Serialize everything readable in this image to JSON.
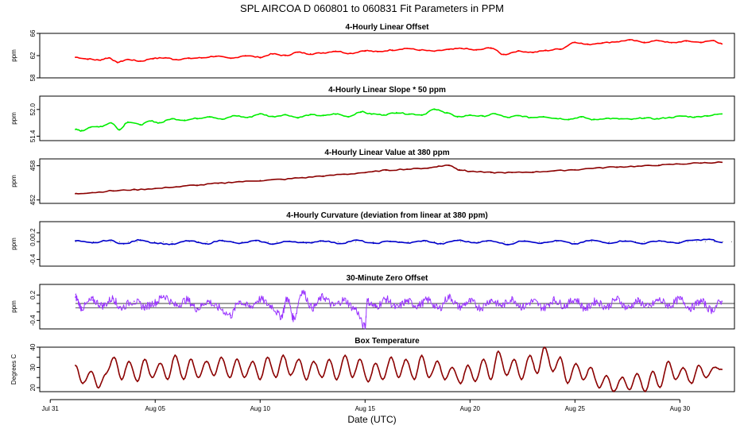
{
  "figure": {
    "title": "SPL   AIRCOA D   060801 to 060831   Fit Parameters in PPM",
    "xlabel": "Date (UTC)"
  },
  "chart_data": [
    {
      "type": "line",
      "title": "4-Hourly Linear Offset",
      "ylabel": "ppm",
      "ylim": [
        58,
        66
      ],
      "yticks": [
        58,
        62,
        66
      ],
      "ytick_labels": [
        "58",
        "62",
        "66"
      ],
      "color": "#ff0000",
      "x_range": [
        1.2,
        32.0
      ],
      "x": [
        1.2,
        1.8,
        2.3,
        2.8,
        3.2,
        3.7,
        4.3,
        4.9,
        5.5,
        6.0,
        6.6,
        7.2,
        7.9,
        8.6,
        9.3,
        10.0,
        10.6,
        11.2,
        11.8,
        12.4,
        13.0,
        13.6,
        14.3,
        15.0,
        15.6,
        16.3,
        17.0,
        17.6,
        18.3,
        19.0,
        19.6,
        20.3,
        21.0,
        21.6,
        22.3,
        23.0,
        23.6,
        24.3,
        25.0,
        25.6,
        26.3,
        27.0,
        27.6,
        28.3,
        29.0,
        29.6,
        30.3,
        31.0,
        31.6,
        32.0
      ],
      "y": [
        61.7,
        61.4,
        61.2,
        61.6,
        60.8,
        61.3,
        61.0,
        61.5,
        61.6,
        61.3,
        61.5,
        61.6,
        61.9,
        61.5,
        62.0,
        61.7,
        62.3,
        62.0,
        62.6,
        62.3,
        62.5,
        62.8,
        62.4,
        62.9,
        62.7,
        63.0,
        63.3,
        63.0,
        62.8,
        63.1,
        63.3,
        63.0,
        63.4,
        62.2,
        62.8,
        62.6,
        62.9,
        63.2,
        64.4,
        64.0,
        64.3,
        64.5,
        64.8,
        64.4,
        64.7,
        64.3,
        64.6,
        64.4,
        64.7,
        64.1
      ]
    },
    {
      "type": "line",
      "title": "4-Hourly Linear Slope * 50 ppm",
      "ylabel": "ppm",
      "ylim": [
        51.3,
        52.3
      ],
      "yticks": [
        51.4,
        52.0
      ],
      "ytick_labels": [
        "51.4",
        "52.0"
      ],
      "color": "#00ee00",
      "x_range": [
        1.2,
        32.0
      ],
      "x": [
        1.2,
        1.5,
        1.9,
        2.4,
        2.9,
        3.3,
        3.7,
        4.3,
        4.8,
        5.2,
        5.8,
        6.4,
        7.0,
        7.6,
        8.2,
        8.8,
        9.4,
        10.0,
        10.6,
        11.2,
        11.8,
        12.4,
        13.0,
        13.6,
        14.2,
        14.8,
        15.3,
        15.9,
        16.5,
        17.1,
        17.7,
        18.3,
        18.9,
        19.4,
        20.0,
        20.6,
        21.2,
        21.8,
        22.3,
        22.9,
        23.5,
        24.1,
        24.7,
        25.3,
        25.9,
        26.5,
        27.1,
        27.7,
        28.3,
        28.9,
        29.5,
        30.1,
        30.7,
        31.3,
        32.0
      ],
      "y": [
        51.55,
        51.52,
        51.6,
        51.62,
        51.7,
        51.55,
        51.72,
        51.66,
        51.74,
        51.7,
        51.79,
        51.76,
        51.8,
        51.84,
        51.78,
        51.86,
        51.82,
        51.9,
        51.84,
        51.88,
        51.82,
        51.88,
        51.86,
        51.9,
        51.84,
        51.95,
        51.9,
        51.88,
        51.93,
        51.9,
        51.88,
        52.0,
        51.93,
        51.83,
        51.87,
        51.85,
        51.9,
        51.82,
        51.86,
        51.82,
        51.84,
        51.8,
        51.78,
        51.83,
        51.77,
        51.8,
        51.79,
        51.78,
        51.81,
        51.79,
        51.82,
        51.85,
        51.83,
        51.86,
        51.9
      ]
    },
    {
      "type": "line",
      "title": "4-Hourly Linear Value at 380 ppm",
      "ylabel": "ppm",
      "ylim": [
        451.4,
        459.2
      ],
      "yticks": [
        452,
        458
      ],
      "ytick_labels": [
        "452",
        "458"
      ],
      "color": "#8b0000",
      "x_range": [
        1.2,
        32.0
      ],
      "x": [
        1.2,
        2.0,
        3.0,
        4.0,
        5.0,
        6.0,
        7.0,
        8.0,
        9.0,
        10.0,
        11.0,
        12.0,
        13.0,
        14.0,
        15.0,
        16.0,
        17.0,
        18.0,
        18.5,
        19.0,
        19.5,
        20.0,
        21.0,
        22.0,
        23.0,
        24.0,
        25.0,
        26.0,
        27.0,
        28.0,
        29.0,
        30.0,
        31.0,
        32.0
      ],
      "y": [
        453.1,
        453.3,
        453.6,
        453.8,
        454.0,
        454.3,
        454.6,
        454.9,
        455.2,
        455.4,
        455.6,
        455.9,
        456.2,
        456.5,
        456.8,
        457.2,
        457.4,
        457.6,
        457.9,
        458.1,
        457.3,
        457.0,
        456.8,
        456.8,
        456.9,
        457.1,
        457.3,
        457.6,
        457.8,
        457.9,
        458.1,
        458.3,
        458.5,
        458.6
      ]
    },
    {
      "type": "line",
      "title": "4-Hourly Curvature (deviation from linear at 380 ppm)",
      "ylabel": "ppm",
      "ylim": [
        -0.55,
        0.45
      ],
      "yticks": [
        -0.4,
        0.0,
        0.2
      ],
      "ytick_labels": [
        "-0.4",
        "0.0",
        "0.2"
      ],
      "color": "#0000cc",
      "reference_lines": [
        0.0
      ],
      "x_range": [
        1.2,
        32.0
      ],
      "x": [
        1.2,
        2.0,
        2.8,
        3.5,
        4.3,
        5.0,
        5.8,
        6.6,
        7.4,
        8.2,
        9.0,
        9.8,
        10.6,
        11.4,
        12.2,
        13.0,
        13.8,
        14.6,
        15.4,
        16.2,
        17.0,
        17.8,
        18.6,
        19.4,
        20.2,
        21.0,
        21.8,
        22.6,
        23.4,
        24.2,
        25.0,
        25.8,
        26.6,
        27.4,
        28.2,
        29.0,
        29.8,
        30.6,
        31.4,
        32.0
      ],
      "y": [
        0.02,
        -0.03,
        0.03,
        -0.05,
        0.04,
        -0.03,
        -0.06,
        0.02,
        -0.05,
        0.03,
        -0.04,
        0.02,
        -0.05,
        0.01,
        -0.03,
        0.02,
        -0.04,
        0.03,
        -0.04,
        0.01,
        -0.03,
        0.02,
        -0.05,
        0.03,
        -0.02,
        0.02,
        -0.06,
        0.02,
        -0.03,
        0.02,
        -0.05,
        0.03,
        -0.03,
        0.02,
        -0.04,
        0.02,
        -0.03,
        0.03,
        0.05,
        -0.02
      ]
    },
    {
      "type": "line",
      "title": "30-Minute Zero Offset",
      "ylabel": "ppm",
      "ylim": [
        -0.6,
        0.45
      ],
      "yticks": [
        -0.4,
        -0.2,
        0.0,
        0.2
      ],
      "ytick_labels": [
        "-0.4",
        "",
        "",
        "0.2"
      ],
      "color": "#9933ff",
      "reference_lines": [
        0.0,
        -0.1
      ],
      "x_range": [
        1.2,
        32.0
      ],
      "noisy": true,
      "x": [
        1.2,
        1.5,
        2.0,
        2.5,
        3.0,
        3.3,
        4.0,
        4.5,
        5.0,
        5.4,
        6.0,
        6.5,
        7.0,
        7.5,
        8.0,
        8.6,
        9.0,
        9.5,
        10.0,
        10.5,
        11.0,
        11.3,
        11.6,
        12.0,
        12.5,
        13.0,
        13.5,
        14.0,
        14.5,
        15.0,
        15.1,
        15.5,
        16.0,
        16.5,
        17.0,
        17.5,
        18.0,
        18.5,
        19.0,
        19.5,
        20.0,
        20.5,
        21.0,
        21.5,
        22.0,
        22.5,
        23.0,
        23.5,
        24.0,
        24.5,
        25.0,
        25.5,
        26.0,
        26.5,
        27.0,
        27.5,
        28.0,
        28.5,
        29.0,
        29.5,
        30.0,
        30.5,
        31.0,
        31.5,
        32.0
      ],
      "y": [
        0.15,
        -0.1,
        0.08,
        -0.05,
        0.12,
        -0.1,
        0.05,
        -0.08,
        0.02,
        0.18,
        -0.05,
        0.08,
        -0.12,
        0.05,
        -0.1,
        -0.28,
        0.05,
        -0.08,
        0.1,
        -0.05,
        -0.3,
        0.12,
        -0.35,
        0.28,
        -0.1,
        0.15,
        -0.05,
        0.08,
        -0.12,
        -0.55,
        0.05,
        -0.08,
        0.1,
        -0.1,
        0.05,
        -0.05,
        0.08,
        -0.12,
        0.15,
        -0.08,
        0.05,
        -0.1,
        0.08,
        -0.05,
        0.1,
        -0.08,
        0.05,
        -0.1,
        0.08,
        -0.05,
        0.1,
        -0.12,
        0.05,
        -0.08,
        0.1,
        -0.1,
        0.05,
        -0.08,
        0.08,
        -0.05,
        0.1,
        -0.1,
        0.05,
        -0.15,
        0.05
      ]
    },
    {
      "type": "line",
      "title": "Box Temperature",
      "ylabel": "Degrees C",
      "ylim": [
        18,
        40
      ],
      "yticks": [
        20,
        25,
        30,
        35,
        40
      ],
      "ytick_labels": [
        "20",
        "",
        "30",
        "",
        "40"
      ],
      "color": "#8b0000",
      "x_range": [
        1.2,
        32.0
      ],
      "x": [
        1.2,
        1.55,
        1.95,
        2.3,
        2.65,
        3.05,
        3.4,
        3.75,
        4.15,
        4.5,
        4.85,
        5.25,
        5.6,
        5.95,
        6.35,
        6.7,
        7.05,
        7.45,
        7.8,
        8.15,
        8.55,
        8.9,
        9.25,
        9.65,
        10.0,
        10.35,
        10.75,
        11.1,
        11.45,
        11.85,
        12.2,
        12.55,
        12.95,
        13.3,
        13.65,
        14.05,
        14.4,
        14.75,
        15.15,
        15.5,
        15.85,
        16.25,
        16.6,
        16.95,
        17.35,
        17.7,
        18.05,
        18.45,
        18.8,
        19.15,
        19.55,
        19.9,
        20.25,
        20.65,
        21.0,
        21.35,
        21.75,
        22.1,
        22.45,
        22.85,
        23.2,
        23.55,
        23.95,
        24.3,
        24.65,
        25.05,
        25.4,
        25.75,
        26.15,
        26.5,
        26.85,
        27.25,
        27.6,
        27.95,
        28.35,
        28.7,
        29.05,
        29.45,
        29.8,
        30.15,
        30.55,
        30.9,
        31.25,
        31.65,
        32.0
      ],
      "y": [
        31,
        22,
        28,
        20,
        27,
        35,
        24,
        33,
        23,
        34,
        25,
        32,
        24,
        36,
        24,
        34,
        25,
        33,
        26,
        35,
        25,
        34,
        25,
        33,
        24,
        35,
        25,
        36,
        26,
        34,
        24,
        33,
        25,
        34,
        24,
        36,
        25,
        34,
        23,
        32,
        24,
        35,
        25,
        34,
        24,
        36,
        25,
        33,
        24,
        30,
        22,
        31,
        23,
        34,
        24,
        38,
        26,
        34,
        24,
        36,
        27,
        40,
        28,
        35,
        22,
        32,
        24,
        30,
        20,
        26,
        18,
        25,
        19,
        27,
        18,
        28,
        20,
        33,
        24,
        30,
        22,
        31,
        25,
        30,
        29
      ]
    }
  ],
  "x_axis": {
    "ticks": [
      0,
      5,
      10,
      15,
      20,
      25,
      30
    ],
    "tick_labels": [
      "Jul 31",
      "Aug 05",
      "Aug 10",
      "Aug 15",
      "Aug 20",
      "Aug 25",
      "Aug 30"
    ]
  }
}
